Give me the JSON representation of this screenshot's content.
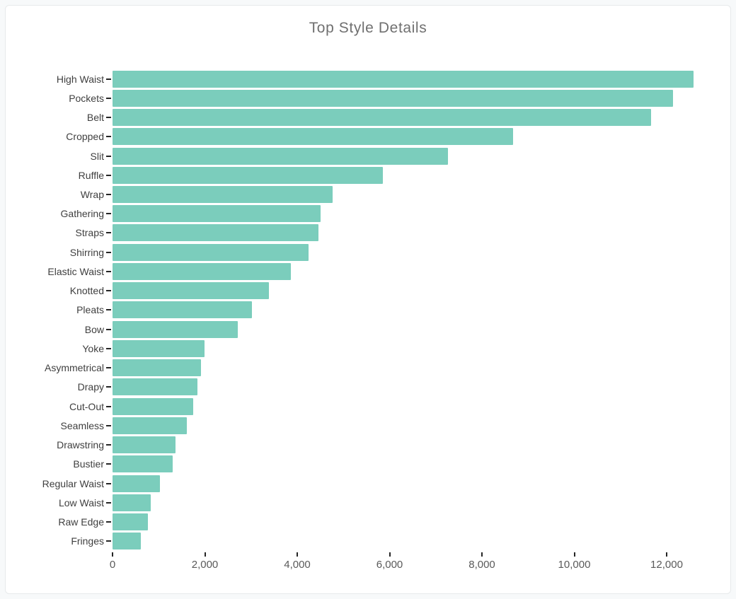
{
  "title": "Top Style Details",
  "colors": {
    "page_background": "#f7f9fa",
    "card_background": "#ffffff",
    "card_border": "#e7eaeb",
    "bar": "#7bcdbc",
    "title_text": "#707070",
    "y_label_text": "#3f3f3f",
    "x_label_text": "#5a5a5a",
    "tick_mark": "#262626"
  },
  "chart_data": {
    "type": "bar",
    "orientation": "horizontal",
    "title": "Top Style Details",
    "xlabel": "",
    "ylabel": "",
    "grid": false,
    "legend": false,
    "xlim": [
      0,
      12904
    ],
    "categories": [
      "High Waist",
      "Pockets",
      "Belt",
      "Cropped",
      "Slit",
      "Ruffle",
      "Wrap",
      "Gathering",
      "Straps",
      "Shirring",
      "Elastic Waist",
      "Knotted",
      "Pleats",
      "Bow",
      "Yoke",
      "Asymmetrical",
      "Drapy",
      "Cut-Out",
      "Seamless",
      "Drawstring",
      "Bustier",
      "Regular Waist",
      "Low Waist",
      "Raw Edge",
      "Fringes"
    ],
    "values": [
      12580,
      12140,
      11660,
      8670,
      7260,
      5860,
      4770,
      4510,
      4460,
      4240,
      3860,
      3390,
      3020,
      2710,
      1990,
      1920,
      1840,
      1750,
      1610,
      1360,
      1300,
      1030,
      830,
      770,
      610
    ],
    "x_ticks": [
      {
        "value": 0,
        "label": "0"
      },
      {
        "value": 2000,
        "label": "2,000"
      },
      {
        "value": 4000,
        "label": "4,000"
      },
      {
        "value": 6000,
        "label": "6,000"
      },
      {
        "value": 8000,
        "label": "8,000"
      },
      {
        "value": 10000,
        "label": "10,000"
      },
      {
        "value": 12000,
        "label": "12,000"
      }
    ]
  }
}
